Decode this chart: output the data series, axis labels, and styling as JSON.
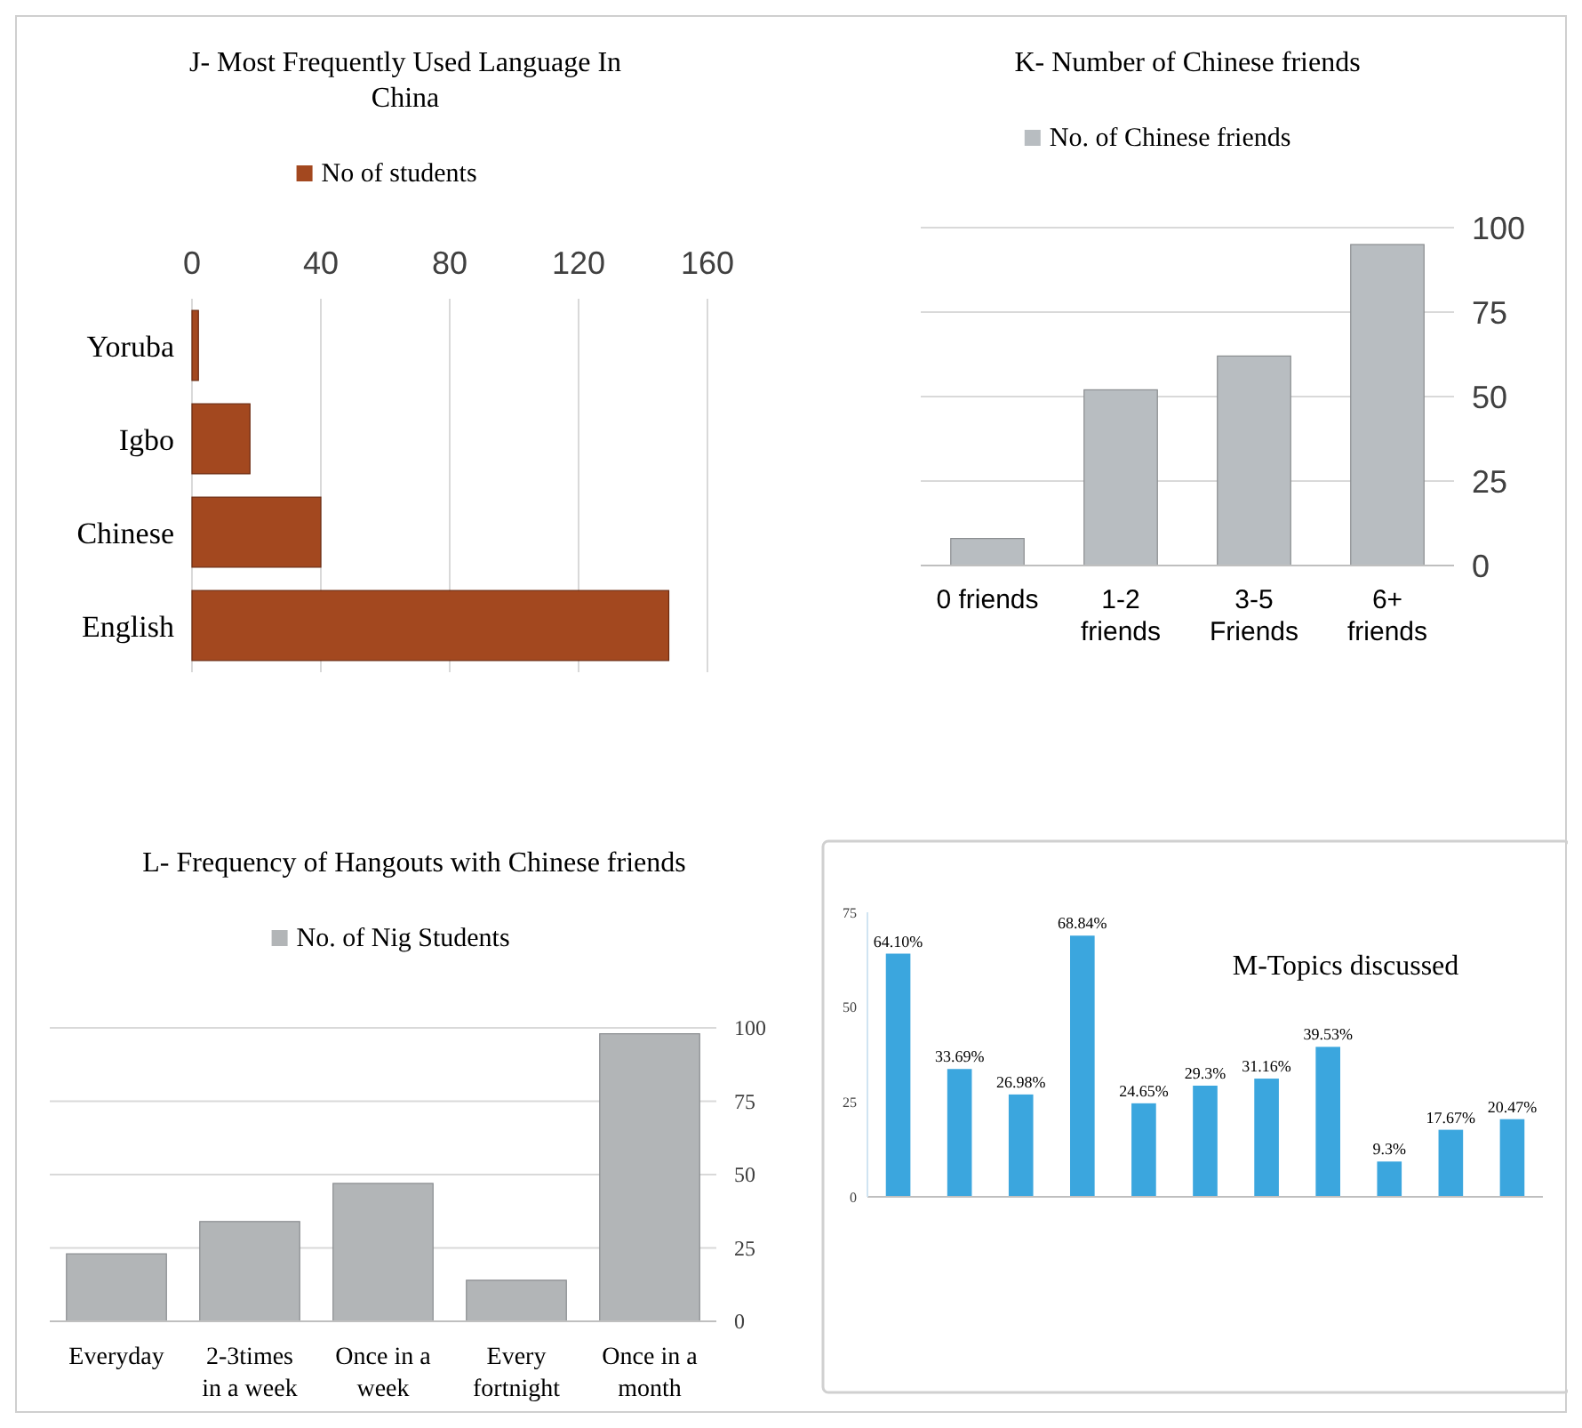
{
  "chart_data": [
    {
      "type": "bar",
      "title": "J-  Most Frequently Used Language In China",
      "orientation": "horizontal",
      "categories": [
        "Yoruba",
        "Igbo",
        "Chinese",
        "English"
      ],
      "series": [
        {
          "name": "No of students",
          "color": "#a3481f",
          "values": [
            2,
            18,
            40,
            148
          ]
        }
      ],
      "xlim": [
        0,
        160
      ],
      "xticks": [
        0,
        40,
        80,
        120,
        160
      ],
      "grid": "x",
      "legend": "top"
    },
    {
      "type": "bar",
      "title": "K- Number of Chinese friends",
      "categories": [
        "0 friends",
        "1-2 friends",
        "3-5 Friends",
        "6+ friends"
      ],
      "series": [
        {
          "name": "No. of Chinese friends",
          "color": "#b8bdc1",
          "values": [
            8,
            52,
            62,
            95
          ]
        }
      ],
      "ylim": [
        0,
        100
      ],
      "yticks": [
        0,
        25,
        50,
        75,
        100
      ],
      "grid": "y",
      "legend": "top"
    },
    {
      "type": "bar",
      "title": "L- Frequency of Hangouts with Chinese friends",
      "categories": [
        "Everyday",
        "2-3times in a week",
        "Once in a week",
        "Every fortnight",
        "Once in a month"
      ],
      "series": [
        {
          "name": "No. of Nig Students",
          "color": "#b2b5b7",
          "values": [
            23,
            34,
            47,
            14,
            98
          ]
        }
      ],
      "ylim": [
        0,
        100
      ],
      "yticks": [
        0,
        25,
        50,
        75,
        100
      ],
      "grid": "y",
      "legend": "top"
    },
    {
      "type": "bar",
      "title": "M-Topics discussed",
      "categories": [
        null,
        null,
        null,
        null,
        null,
        null,
        null,
        null,
        null,
        null,
        null
      ],
      "series": [
        {
          "color": "#3ba6de",
          "values": [
            64.1,
            33.69,
            26.98,
            68.84,
            24.65,
            29.3,
            31.16,
            39.53,
            9.3,
            17.67,
            20.47
          ],
          "value_labels": [
            "64.10%",
            "33.69%",
            "26.98%",
            "68.84%",
            "24.65%",
            "29.3%",
            "31.16%",
            "39.53%",
            "9.3%",
            "17.67%",
            "20.47%"
          ]
        }
      ],
      "ylim": [
        0,
        75
      ],
      "yticks": [
        0,
        25,
        50,
        75
      ]
    }
  ]
}
